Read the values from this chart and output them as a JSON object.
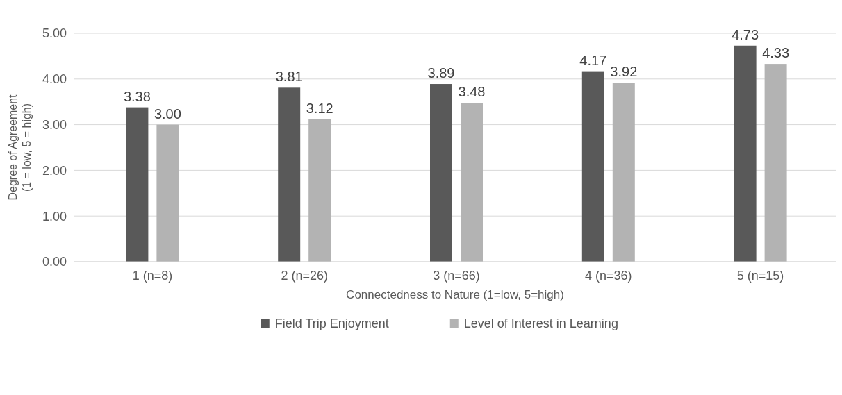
{
  "chart_data": {
    "type": "bar",
    "xlabel": "Connectedness to Nature (1=low, 5=high)",
    "ylabel": "Degree of Agreement\n(1 = low, 5 = high)",
    "categories": [
      "1 (n=8)",
      "2 (n=26)",
      "3 (n=66)",
      "4 (n=36)",
      "5 (n=15)"
    ],
    "series": [
      {
        "name": "Field Trip Enjoyment",
        "color": "#595959",
        "values": [
          3.38,
          3.81,
          3.89,
          4.17,
          4.73
        ],
        "value_labels": [
          "3.38",
          "3.81",
          "3.89",
          "4.17",
          "4.73"
        ]
      },
      {
        "name": "Level of Interest in Learning",
        "color": "#b3b3b3",
        "values": [
          3.0,
          3.12,
          3.48,
          3.92,
          4.33
        ],
        "value_labels": [
          "3.00",
          "3.12",
          "3.48",
          "3.92",
          "4.33"
        ]
      }
    ],
    "ylim": [
      0,
      5
    ],
    "yticks": [
      {
        "value": 0,
        "label": "0.00"
      },
      {
        "value": 1,
        "label": "1.00"
      },
      {
        "value": 2,
        "label": "2.00"
      },
      {
        "value": 3,
        "label": "3.00"
      },
      {
        "value": 4,
        "label": "4.00"
      },
      {
        "value": 5,
        "label": "5.00"
      }
    ],
    "grid": "y",
    "legend": "bottom"
  }
}
